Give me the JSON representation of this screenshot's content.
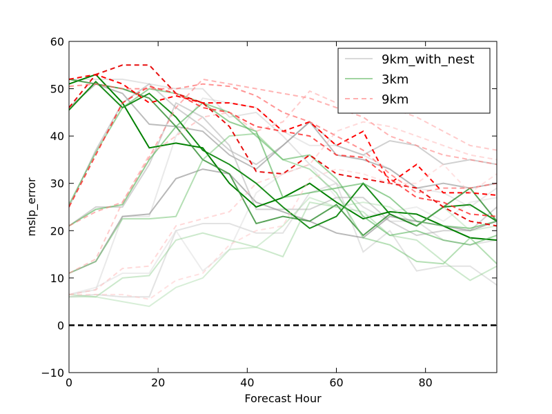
{
  "chart_data": {
    "type": "line",
    "title": "",
    "xlabel": "Forecast Hour",
    "ylabel": "mslp_error",
    "xlim": [
      0,
      96
    ],
    "ylim": [
      -10,
      60
    ],
    "xticks": [
      0,
      20,
      40,
      60,
      80
    ],
    "yticks": [
      -10,
      0,
      10,
      20,
      30,
      40,
      50,
      60
    ],
    "grid": false,
    "legend_position": "top-right",
    "reference_line": {
      "y": 0,
      "style": "dashed",
      "color": "#000000"
    },
    "legend": [
      {
        "label": "9km_with_nest",
        "color": "#aaaaaa",
        "dash": "solid"
      },
      {
        "label": "3km",
        "color": "#2ca02c",
        "dash": "solid"
      },
      {
        "label": "9km",
        "color": "#ff4d4d",
        "dash": "dashed"
      }
    ],
    "x": [
      0,
      6,
      12,
      18,
      24,
      30,
      36,
      42,
      48,
      54,
      60,
      66,
      72,
      78,
      84,
      90,
      96
    ],
    "series": [
      {
        "group": "9km_with_nest",
        "color": "#c8c8c8",
        "opacity": 0.5,
        "values": [
          52,
          52,
          52,
          51,
          50,
          50,
          44,
          45,
          40,
          34,
          30,
          25,
          22,
          22,
          18,
          17,
          18
        ]
      },
      {
        "group": "9km_with_nest",
        "color": "#c8c8c8",
        "opacity": 0.4,
        "values": [
          6.5,
          7.5,
          23,
          23,
          40,
          48,
          47,
          46,
          41,
          38,
          38,
          36,
          33,
          29,
          28,
          25,
          29
        ]
      },
      {
        "group": "9km_with_nest",
        "color": "#b0b0b0",
        "opacity": 0.6,
        "values": [
          25,
          37,
          47,
          51,
          46,
          42,
          37,
          34,
          38,
          43,
          38,
          36,
          39,
          38,
          34,
          35,
          34
        ]
      },
      {
        "group": "9km_with_nest",
        "color": "#a0a0a0",
        "opacity": 0.7,
        "values": [
          46,
          51,
          49,
          42.5,
          42,
          41,
          36,
          33,
          38,
          43,
          36,
          35,
          33,
          29,
          30,
          29,
          30
        ]
      },
      {
        "group": "9km_with_nest",
        "color": "#b5b5b5",
        "opacity": 0.6,
        "values": [
          21,
          25,
          25,
          34,
          47,
          44,
          38,
          24.5,
          24.5,
          24.5,
          27,
          27,
          22,
          19,
          20,
          20,
          25
        ]
      },
      {
        "group": "9km_with_nest",
        "color": "#d0d0d0",
        "opacity": 0.6,
        "values": [
          6,
          6.5,
          6,
          6,
          20,
          21.5,
          21.5,
          19.5,
          19.5,
          28,
          30,
          15.5,
          20,
          11.5,
          12.5,
          12.5,
          8.5
        ]
      },
      {
        "group": "9km_with_nest",
        "color": "#9a9a9a",
        "opacity": 0.7,
        "values": [
          11,
          13.5,
          23,
          23.5,
          31,
          33,
          32,
          26,
          24,
          22,
          19.5,
          18.5,
          23,
          22,
          21,
          20,
          22
        ]
      },
      {
        "group": "9km_with_nest",
        "color": "#dcdcdc",
        "opacity": 0.5,
        "values": [
          6.5,
          8,
          11,
          11,
          20,
          11.5,
          16,
          28,
          32,
          34,
          27,
          23,
          24,
          25,
          22,
          26,
          27
        ]
      },
      {
        "group": "3km",
        "color": "#008000",
        "opacity": 1.0,
        "values": [
          51,
          53,
          47,
          37.5,
          38.5,
          37.5,
          30,
          25,
          27,
          30,
          26,
          22.5,
          24,
          23.5,
          21,
          18.5,
          18
        ]
      },
      {
        "group": "3km",
        "color": "#008000",
        "opacity": 0.9,
        "values": [
          45.5,
          51.5,
          46,
          49,
          44,
          37,
          34,
          30,
          25,
          20.5,
          23,
          30,
          23.5,
          21,
          25,
          25.5,
          22
        ]
      },
      {
        "group": "3km",
        "color": "#2e8b2e",
        "opacity": 0.8,
        "values": [
          52,
          51,
          50,
          48,
          42,
          35,
          32,
          21.5,
          23,
          22,
          25.5,
          19,
          23.5,
          21,
          25,
          29,
          22
        ]
      },
      {
        "group": "3km",
        "color": "#4caf50",
        "opacity": 0.6,
        "values": [
          21,
          24.5,
          25.5,
          35,
          42,
          47,
          43,
          41,
          27,
          28,
          29,
          30,
          27,
          22,
          21,
          20.5,
          22
        ]
      },
      {
        "group": "3km",
        "color": "#4caf50",
        "opacity": 0.55,
        "values": [
          25.5,
          36.5,
          46,
          50,
          49,
          47,
          45,
          40,
          35,
          36,
          31,
          23,
          19,
          20,
          18,
          17,
          19
        ]
      },
      {
        "group": "3km",
        "color": "#6abf69",
        "opacity": 0.5,
        "values": [
          11,
          13.5,
          22.5,
          22.5,
          23,
          35,
          40,
          40.5,
          35,
          33,
          28,
          18.5,
          17,
          13.5,
          13,
          18.5,
          13
        ]
      },
      {
        "group": "3km",
        "color": "#7fc97f",
        "opacity": 0.4,
        "values": [
          6.5,
          6,
          10,
          10.5,
          18,
          19.5,
          18,
          16.5,
          14.5,
          26,
          25,
          24,
          19,
          18,
          13.5,
          9.5,
          12.5
        ]
      },
      {
        "group": "3km",
        "color": "#8ccf8c",
        "opacity": 0.35,
        "values": [
          6,
          6,
          5,
          4,
          8,
          10,
          16,
          16.5,
          21,
          27,
          25,
          26,
          25,
          21,
          25,
          20,
          21
        ]
      },
      {
        "group": "9km",
        "color": "#ff0000",
        "opacity": 1.0,
        "values": [
          52,
          53,
          51,
          47,
          48.5,
          47,
          47,
          46,
          41,
          43,
          38,
          41,
          30,
          34,
          28,
          28,
          27.5
        ]
      },
      {
        "group": "9km",
        "color": "#e60000",
        "opacity": 0.95,
        "values": [
          46,
          53,
          55,
          55,
          49,
          47,
          42,
          32.5,
          32,
          36,
          32,
          31,
          30,
          29,
          25,
          22,
          21
        ]
      },
      {
        "group": "9km",
        "color": "#ff3030",
        "opacity": 0.85,
        "values": [
          25,
          36,
          47,
          50.5,
          49,
          46,
          45,
          42,
          41,
          40,
          36,
          35.5,
          31,
          27,
          26,
          23.5,
          23
        ]
      },
      {
        "group": "9km",
        "color": "#ff6666",
        "opacity": 0.7,
        "values": [
          50.5,
          51,
          50,
          50,
          50,
          51,
          50.5,
          48.5,
          45,
          43,
          40,
          37,
          32,
          28,
          29,
          29,
          30
        ]
      },
      {
        "group": "9km",
        "color": "#ff8080",
        "opacity": 0.6,
        "values": [
          21,
          24,
          26,
          35.5,
          46,
          52,
          51,
          50,
          49,
          48,
          46,
          44,
          40,
          38,
          36,
          35,
          34
        ]
      },
      {
        "group": "9km",
        "color": "#ffa0a0",
        "opacity": 0.55,
        "values": [
          11,
          14,
          26,
          36,
          40,
          44,
          45,
          41,
          43,
          49.5,
          47,
          48,
          46,
          44,
          41,
          38,
          37
        ]
      },
      {
        "group": "9km",
        "color": "#ffb3b3",
        "opacity": 0.5,
        "values": [
          6.5,
          7.5,
          12,
          12.5,
          21,
          22.5,
          24,
          30,
          32,
          34,
          41,
          43,
          42,
          40,
          38,
          36,
          35
        ]
      },
      {
        "group": "9km",
        "color": "#ffc4c4",
        "opacity": 0.5,
        "values": [
          6.5,
          6.5,
          6.5,
          5.5,
          9.5,
          11,
          17,
          20,
          21,
          31,
          33,
          32,
          30,
          30,
          34,
          28,
          32
        ]
      }
    ]
  }
}
